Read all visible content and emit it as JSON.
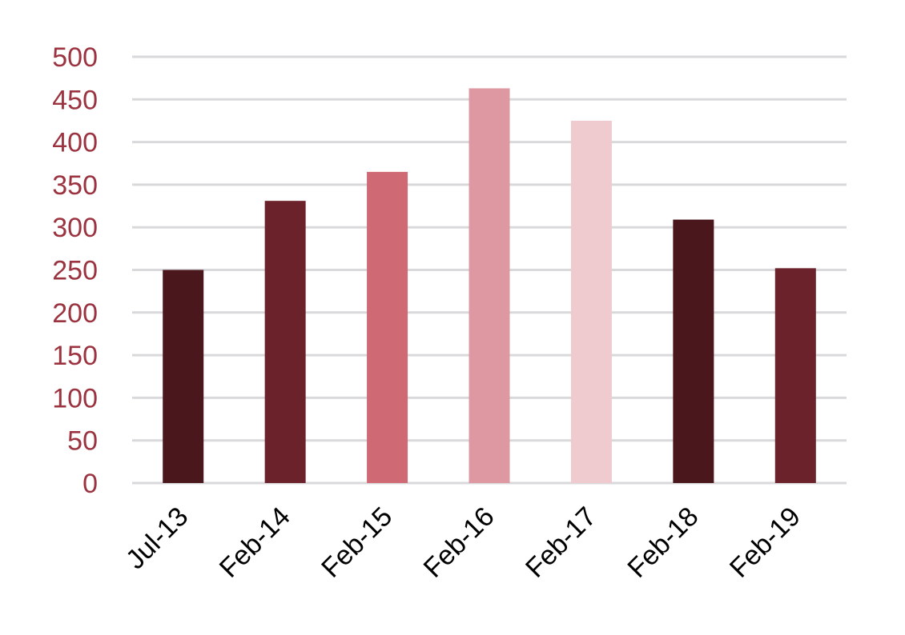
{
  "chart_data": {
    "type": "bar",
    "title": "",
    "xlabel": "",
    "ylabel": "",
    "categories": [
      "Jul-13",
      "Feb-14",
      "Feb-15",
      "Feb-16",
      "Feb-17",
      "Feb-18",
      "Feb-19"
    ],
    "values": [
      250,
      331,
      365,
      463,
      425,
      309,
      252
    ],
    "ylim": [
      0,
      500
    ],
    "y_ticks": [
      "0",
      "50",
      "100",
      "150",
      "200",
      "250",
      "300",
      "350",
      "400",
      "450",
      "500"
    ],
    "grid": true,
    "legend": "none",
    "bar_colors": [
      "#4a171d",
      "#6b222a",
      "#cf6a74",
      "#de98a2",
      "#efcbd0",
      "#4a171d",
      "#6b222a"
    ],
    "colors": {
      "axis_text": "#9b3440",
      "gridline": "#d9d9dc",
      "category_text": "#000000"
    }
  }
}
